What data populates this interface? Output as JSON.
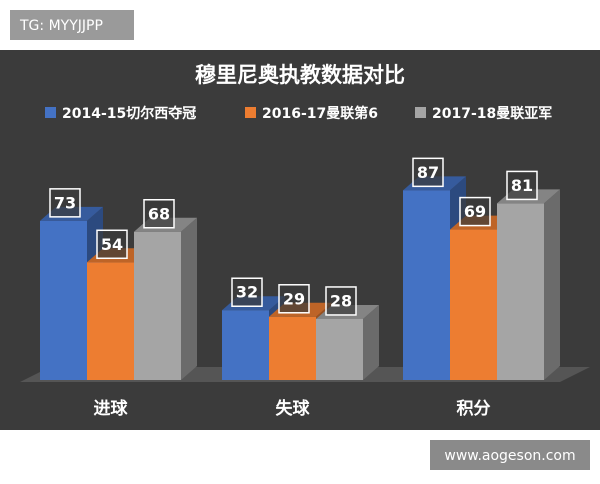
{
  "chart_data": {
    "type": "bar3d",
    "title": "穆里尼奥执教数据对比",
    "categories": [
      "进球",
      "失球",
      "积分"
    ],
    "series": [
      {
        "name": "2014-15切尔西夺冠",
        "color": "#4472c4",
        "values": [
          73,
          32,
          87
        ]
      },
      {
        "name": "2016-17曼联第6",
        "color": "#ed7d31",
        "values": [
          54,
          29,
          69
        ]
      },
      {
        "name": "2017-18曼联亚军",
        "color": "#a5a5a5",
        "values": [
          68,
          28,
          81
        ]
      }
    ],
    "legend": "top"
  },
  "watermarks": {
    "top_left": "TG: MYYJJPP",
    "bottom_right": "www.aogeson.com"
  }
}
